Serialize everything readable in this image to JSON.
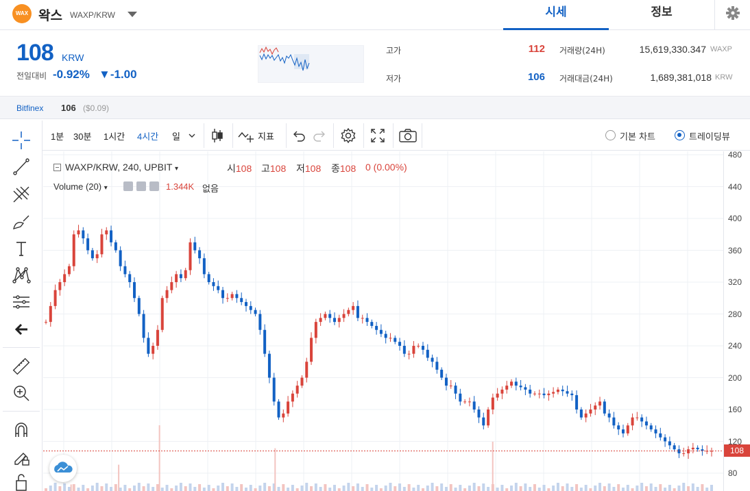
{
  "header": {
    "logo_text": "WAX",
    "coin_name": "왁스",
    "coin_pair": "WAXP/KRW",
    "tabs": [
      {
        "label": "시세",
        "active": true
      },
      {
        "label": "정보",
        "active": false
      }
    ]
  },
  "price": {
    "current": "108",
    "unit": "KRW",
    "change_label": "전일대비",
    "change_pct": "-0.92%",
    "change_abs": "▼-1.00",
    "high_label": "고가",
    "high": "112",
    "low_label": "저가",
    "low": "106",
    "volume_label": "거래량(24H)",
    "volume": "15,619,330.347",
    "volume_unit": "WAXP",
    "amount_label": "거래대금(24H)",
    "amount": "1,689,381,018",
    "amount_unit": "KRW"
  },
  "exchange": {
    "name": "Bitfinex",
    "price": "106",
    "usd": "($0.09)"
  },
  "toolbar": {
    "intervals": [
      "1분",
      "30분",
      "1시간",
      "4시간",
      "일"
    ],
    "active_interval": "4시간",
    "indicator_label": "지표",
    "view_basic": "기본 차트",
    "view_trading": "트레이딩뷰"
  },
  "legend": {
    "symbol": "WAXP/KRW, 240, UPBIT",
    "open_label": "시",
    "open": "108",
    "high_label": "고",
    "high": "108",
    "low_label": "저",
    "low": "108",
    "close_label": "종",
    "close": "108",
    "change": "0 (0.00%)",
    "volume_label": "Volume (20)",
    "volume_value": "1.344K",
    "volume_none": "없음"
  },
  "colors": {
    "accent": "#1261c4",
    "up": "#d9443b",
    "down": "#1261c4",
    "logo": "#f89022"
  },
  "chart_data": {
    "type": "candlestick",
    "yaxis_ticks": [
      "480",
      "440",
      "400",
      "360",
      "320",
      "280",
      "240",
      "200",
      "160",
      "120",
      "80"
    ],
    "ylim": [
      80,
      480
    ],
    "last_price_tag": "108",
    "series": [
      {
        "values": [
          270,
          290,
          310,
          320,
          330,
          340,
          380,
          385,
          375,
          360,
          350,
          355,
          380,
          385,
          370,
          360,
          340,
          330,
          320,
          300,
          280,
          250,
          230,
          240,
          260,
          300,
          310,
          320,
          330,
          325,
          335,
          370,
          360,
          350,
          330,
          320,
          315,
          310,
          300,
          300,
          305,
          300,
          295,
          290,
          285,
          280,
          260,
          230,
          200,
          170,
          150,
          155,
          170,
          180,
          190,
          200,
          220,
          250,
          270,
          275,
          280,
          275,
          270,
          275,
          280,
          285,
          290,
          275,
          275,
          270,
          265,
          260,
          255,
          250,
          250,
          245,
          240,
          230,
          230,
          240,
          240,
          235,
          225,
          220,
          210,
          200,
          190,
          190,
          180,
          170,
          170,
          170,
          160,
          150,
          140,
          160,
          175,
          180,
          185,
          190,
          195,
          190,
          188,
          185,
          180,
          180,
          180,
          178,
          180,
          182,
          185,
          183,
          180,
          178,
          160,
          150,
          155,
          160,
          165,
          170,
          155,
          150,
          140,
          135,
          130,
          140,
          150,
          150,
          145,
          140,
          135,
          130,
          125,
          120,
          115,
          110,
          105,
          105,
          110,
          112,
          110,
          108,
          108,
          108
        ]
      }
    ],
    "volume_spikes": [
      0.08,
      0.32,
      0.8,
      0.52,
      0.6
    ]
  }
}
